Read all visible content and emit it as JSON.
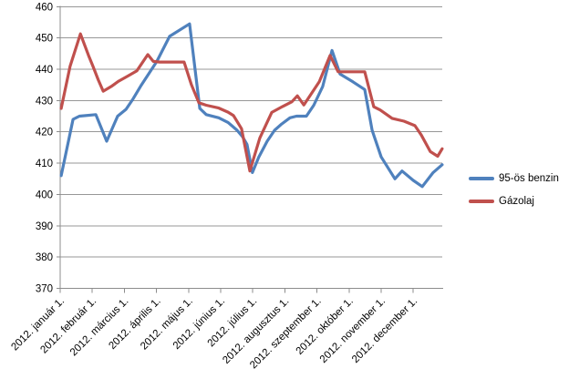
{
  "chart_data": {
    "type": "line",
    "title": "",
    "grid": true,
    "legend_position": "right",
    "x_axis": {
      "unit": "month_pos (0 = 2012. január 1. tick, 11 = 2012. december 1. tick, 11.9 = chart right edge)",
      "tick_labels": [
        "2012. január 1.",
        "2012. február 1.",
        "2012. március 1.",
        "2012. április 1.",
        "2012. május 1.",
        "2012. június 1.",
        "2012. július 1.",
        "2012. augusztus 1.",
        "2012. szeptember 1.",
        "2012. október 1.",
        "2012. november 1.",
        "2012. december 1."
      ]
    },
    "y_axis": {
      "min": 370,
      "max": 460,
      "step": 10,
      "tick_labels": [
        460,
        450,
        440,
        430,
        420,
        410,
        400,
        390,
        380,
        370
      ]
    },
    "colors": {
      "gridline": "#979797",
      "axis": "#8c8c8c",
      "label_text": "#000000"
    },
    "series": [
      {
        "name": "95-ös benzin",
        "color": "#4F81BD",
        "points": [
          [
            0.03,
            406
          ],
          [
            0.4,
            424
          ],
          [
            0.6,
            425
          ],
          [
            1.11,
            425.5
          ],
          [
            1.45,
            417
          ],
          [
            1.79,
            425
          ],
          [
            2.05,
            427.2
          ],
          [
            2.27,
            430.5
          ],
          [
            2.53,
            435
          ],
          [
            3.01,
            442.5
          ],
          [
            3.41,
            450.5
          ],
          [
            4.03,
            454.5
          ],
          [
            4.35,
            427.5
          ],
          [
            4.55,
            425.5
          ],
          [
            4.94,
            424.5
          ],
          [
            5.23,
            423
          ],
          [
            5.51,
            420.5
          ],
          [
            5.68,
            418.5
          ],
          [
            5.82,
            416
          ],
          [
            5.99,
            407
          ],
          [
            6.19,
            412
          ],
          [
            6.45,
            417
          ],
          [
            6.68,
            420.5
          ],
          [
            6.9,
            422.5
          ],
          [
            7.16,
            424.5
          ],
          [
            7.36,
            425
          ],
          [
            7.67,
            425
          ],
          [
            7.9,
            428.5
          ],
          [
            8.18,
            434.5
          ],
          [
            8.47,
            446
          ],
          [
            8.72,
            438.5
          ],
          [
            9.12,
            436
          ],
          [
            9.49,
            433.5
          ],
          [
            9.72,
            420.5
          ],
          [
            10.0,
            412
          ],
          [
            10.43,
            405
          ],
          [
            10.65,
            407.5
          ],
          [
            11.0,
            404.5
          ],
          [
            11.28,
            402.5
          ],
          [
            11.62,
            407
          ],
          [
            11.9,
            409.5
          ]
        ]
      },
      {
        "name": "Gázolaj",
        "color": "#C0504D",
        "points": [
          [
            0.03,
            427.5
          ],
          [
            0.31,
            441
          ],
          [
            0.63,
            451.3
          ],
          [
            0.88,
            444.5
          ],
          [
            1.02,
            441
          ],
          [
            1.19,
            436.5
          ],
          [
            1.34,
            433
          ],
          [
            1.59,
            434.5
          ],
          [
            1.82,
            436.2
          ],
          [
            2.1,
            437.8
          ],
          [
            2.39,
            439.5
          ],
          [
            2.73,
            444.7
          ],
          [
            2.9,
            442.5
          ],
          [
            3.1,
            442.3
          ],
          [
            3.86,
            442.3
          ],
          [
            4.09,
            435
          ],
          [
            4.32,
            429.3
          ],
          [
            4.55,
            428.5
          ],
          [
            4.94,
            427.6
          ],
          [
            5.23,
            426.3
          ],
          [
            5.4,
            425.2
          ],
          [
            5.65,
            421
          ],
          [
            5.91,
            407.5
          ],
          [
            6.22,
            418
          ],
          [
            6.59,
            426.2
          ],
          [
            6.93,
            428.1
          ],
          [
            7.22,
            429.6
          ],
          [
            7.39,
            431.5
          ],
          [
            7.59,
            428.6
          ],
          [
            8.07,
            436
          ],
          [
            8.41,
            444.4
          ],
          [
            8.66,
            439.2
          ],
          [
            9.49,
            439.2
          ],
          [
            9.77,
            428
          ],
          [
            9.97,
            427
          ],
          [
            10.34,
            424.3
          ],
          [
            10.71,
            423.4
          ],
          [
            11.05,
            422
          ],
          [
            11.25,
            419
          ],
          [
            11.53,
            413.7
          ],
          [
            11.76,
            412.2
          ],
          [
            11.9,
            414.6
          ]
        ]
      }
    ]
  }
}
